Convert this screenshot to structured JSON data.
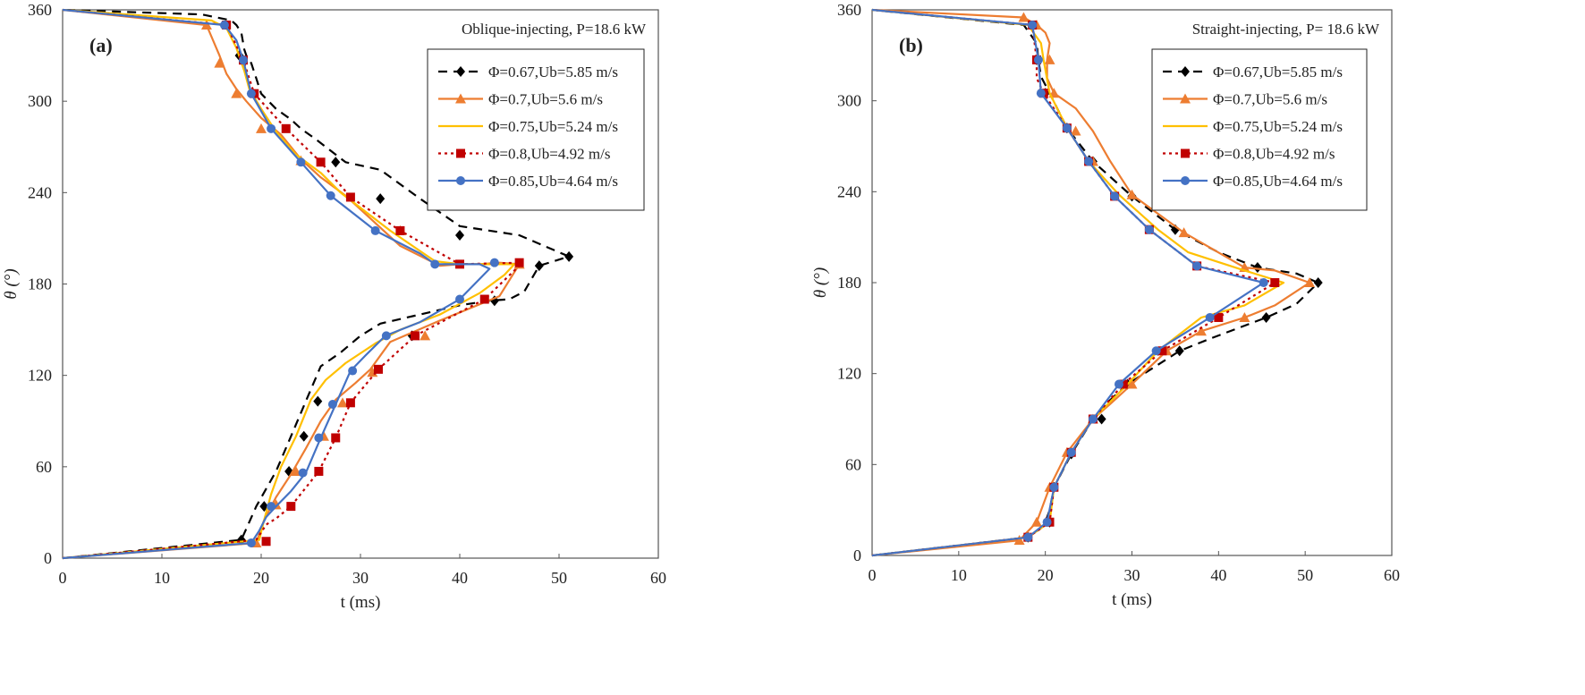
{
  "chart_data": [
    {
      "type": "line",
      "panel_label": "(a)",
      "title": "Oblique-injecting, P=18.6 kW",
      "xlabel": "t (ms)",
      "ylabel": "θ (°)",
      "xlim": [
        0,
        60
      ],
      "ylim": [
        0,
        360
      ],
      "xticks": [
        "0",
        "10",
        "20",
        "30",
        "40",
        "50",
        "60"
      ],
      "yticks": [
        "0",
        "60",
        "120",
        "180",
        "240",
        "300",
        "360"
      ],
      "grid": false,
      "legend_position": "top-right",
      "series": [
        {
          "name": "Φ=0.67,Ub=5.85 m/s",
          "color": "#000000",
          "dash": "10,7",
          "marker": "diamond",
          "x": [
            0,
            18,
            19.5,
            21.5,
            23,
            24.5,
            26,
            28,
            30,
            32,
            36,
            40,
            43,
            45,
            46.5,
            48,
            51,
            46,
            40,
            36,
            32,
            28.5,
            25.5,
            24,
            23,
            21.5,
            20,
            19.5,
            19,
            18.5,
            18.3,
            18,
            17.5,
            17,
            14,
            0
          ],
          "y": [
            0,
            12,
            34,
            57,
            80,
            103,
            126,
            135,
            146,
            154,
            160,
            166,
            169,
            170,
            175,
            192,
            198,
            212,
            218,
            236,
            255,
            260,
            275,
            282,
            288,
            295,
            305,
            315,
            325,
            330,
            334,
            345,
            350,
            353,
            357,
            360
          ],
          "marker_x": [
            18,
            20.3,
            22.8,
            24.3,
            25.7,
            35.2,
            43.5,
            48,
            51,
            40,
            32,
            27.5,
            17.8
          ],
          "marker_y": [
            12,
            34,
            57,
            80,
            103,
            146,
            169,
            192,
            198,
            212,
            236,
            260,
            330
          ]
        },
        {
          "name": "Φ=0.7,Ub=5.6 m/s",
          "color": "#ed7d31",
          "dash": "",
          "marker": "triangle",
          "x": [
            0,
            19.5,
            20.3,
            21.5,
            23,
            24.5,
            26,
            27.5,
            29.5,
            31,
            33,
            38,
            44,
            46,
            44,
            42,
            40,
            38,
            34,
            28.5,
            26,
            24,
            22,
            20,
            18.5,
            17.5,
            16.5,
            15.8,
            14.5,
            0
          ],
          "y": [
            0,
            10,
            25,
            40,
            55,
            72,
            90,
            104,
            115,
            124,
            142,
            156,
            172,
            193,
            194,
            193,
            193,
            192,
            205,
            238,
            250,
            262,
            278,
            289,
            300,
            308,
            318,
            330,
            350,
            360
          ],
          "marker_x": [
            19.5,
            21.5,
            23.5,
            26.3,
            28.2,
            31.2,
            36.5,
            46,
            34,
            24,
            20,
            17.5,
            15.8,
            14.5
          ],
          "marker_y": [
            10,
            35,
            57,
            80,
            102,
            122,
            146,
            193,
            215,
            261,
            282,
            305,
            325,
            350
          ]
        },
        {
          "name": "Φ=0.75,Ub=5.24 m/s",
          "color": "#ffc000",
          "dash": "",
          "marker": "",
          "x": [
            0,
            19.8,
            20.3,
            21,
            22,
            23.5,
            25,
            26.5,
            28.5,
            31.5,
            34,
            38,
            42,
            44.5,
            45.5,
            43,
            40,
            37.5,
            33,
            28,
            26,
            23.5,
            21.5,
            20,
            18.8,
            18.3,
            17.5,
            16.5,
            15,
            0
          ],
          "y": [
            0,
            12,
            25,
            42,
            60,
            80,
            104,
            117,
            128,
            141,
            150,
            160,
            174,
            186,
            193,
            193,
            193,
            195,
            215,
            240,
            253,
            265,
            280,
            295,
            308,
            320,
            335,
            348,
            353,
            360
          ],
          "marker_x": [],
          "marker_y": []
        },
        {
          "name": "Φ=0.8,Ub=4.92 m/s",
          "color": "#c00000",
          "dash": "3,4",
          "marker": "square",
          "x": [
            0,
            19.5,
            20.5,
            21.5,
            23,
            25.8,
            27.5,
            29,
            31.8,
            35.5,
            42.5,
            46,
            46,
            40,
            34,
            29,
            26,
            22.5,
            19.3,
            18.2,
            16.5,
            0
          ],
          "y": [
            0,
            12,
            22,
            26,
            34,
            57,
            79,
            102,
            124,
            146,
            170,
            192,
            194,
            193,
            215,
            237,
            260,
            282,
            305,
            327,
            350,
            360
          ],
          "marker_x": [
            20.5,
            23,
            25.8,
            27.5,
            29,
            31.8,
            35.5,
            42.5,
            46,
            40,
            34,
            29,
            26,
            22.5,
            19.3,
            18.2,
            16.5
          ],
          "marker_y": [
            11,
            34,
            57,
            79,
            102,
            124,
            146,
            170,
            194,
            193,
            215,
            237,
            260,
            282,
            305,
            327,
            350
          ]
        },
        {
          "name": "Φ=0.85,Ub=4.64 m/s",
          "color": "#4472c4",
          "dash": "",
          "marker": "circle",
          "x": [
            0,
            19,
            19.8,
            20.5,
            21.5,
            23,
            24.5,
            26,
            27.5,
            29,
            30.5,
            32.5,
            36,
            40,
            43,
            42,
            40,
            37.5,
            36,
            31.5,
            27,
            24,
            21,
            19,
            18.2,
            17.5,
            16.3,
            0
          ],
          "y": [
            0,
            10,
            18,
            27,
            34,
            44,
            56,
            79,
            101,
            123,
            133,
            146,
            155,
            170,
            190,
            193,
            193,
            193,
            200,
            215,
            238,
            260,
            282,
            305,
            327,
            340,
            350,
            360
          ],
          "marker_x": [
            19,
            21,
            24.2,
            25.8,
            27.2,
            29.2,
            32.6,
            40,
            43.5,
            37.5,
            31.5,
            27,
            24,
            21,
            19,
            18.2,
            16.3
          ],
          "marker_y": [
            10,
            34,
            56,
            79,
            101,
            123,
            146,
            170,
            194,
            193,
            215,
            238,
            260,
            282,
            305,
            327,
            350
          ]
        }
      ]
    },
    {
      "type": "line",
      "panel_label": "(b)",
      "title": "Straight-injecting, P= 18.6 kW",
      "xlabel": "t (ms)",
      "ylabel": "θ (°)",
      "xlim": [
        0,
        60
      ],
      "ylim": [
        0,
        360
      ],
      "xticks": [
        "0",
        "10",
        "20",
        "30",
        "40",
        "50",
        "60"
      ],
      "yticks": [
        "0",
        "60",
        "120",
        "180",
        "240",
        "300",
        "360"
      ],
      "grid": false,
      "legend_position": "top-right",
      "series": [
        {
          "name": "Φ=0.67,Ub=5.85 m/s",
          "color": "#000000",
          "dash": "10,7",
          "marker": "diamond",
          "x": [
            0,
            18,
            19.5,
            20,
            20.5,
            21,
            23,
            25.5,
            27,
            29.5,
            32.5,
            35.5,
            39,
            45.5,
            49,
            51.5,
            49,
            44.5,
            40,
            35,
            30,
            25.5,
            22.5,
            20.5,
            19.5,
            19.2,
            19,
            17.5,
            0
          ],
          "y": [
            0,
            12,
            18,
            22,
            30,
            45,
            67,
            90,
            100,
            113,
            124,
            135,
            143,
            157,
            166,
            180,
            186,
            190,
            200,
            215,
            237,
            260,
            282,
            305,
            316,
            327,
            338,
            350,
            360
          ],
          "marker_x": [
            18,
            20.5,
            21,
            23,
            26.5,
            29.5,
            35.5,
            45.5,
            51.5,
            44.5,
            35,
            30,
            25.5,
            22.5,
            20,
            19
          ],
          "marker_y": [
            12,
            22,
            45,
            67,
            90,
            113,
            135,
            157,
            180,
            190,
            215,
            237,
            260,
            282,
            305,
            327
          ]
        },
        {
          "name": "Φ=0.7,Ub=5.6 m/s",
          "color": "#ed7d31",
          "dash": "",
          "marker": "triangle",
          "x": [
            0,
            17,
            19,
            20.5,
            22.5,
            25.5,
            27.5,
            30,
            34,
            38,
            43,
            46.5,
            50.5,
            46.5,
            43,
            36,
            30,
            27.5,
            25.5,
            23.5,
            21,
            20.2,
            20.2,
            20.5,
            20,
            19,
            17.5,
            0
          ],
          "y": [
            0,
            10,
            22,
            45,
            68,
            90,
            100,
            113,
            135,
            148,
            157,
            165,
            180,
            188,
            190,
            213,
            238,
            260,
            280,
            295,
            305,
            315,
            327,
            338,
            345,
            350,
            355,
            360
          ],
          "marker_x": [
            17,
            19,
            20.5,
            22.5,
            25.5,
            30,
            34,
            38,
            43,
            50.5,
            43,
            36,
            30,
            25.5,
            23.5,
            21,
            20.5,
            19,
            17.5
          ],
          "marker_y": [
            10,
            22,
            45,
            68,
            90,
            113,
            135,
            148,
            157,
            180,
            190,
            213,
            238,
            260,
            280,
            305,
            327,
            350,
            355
          ]
        },
        {
          "name": "Φ=0.75,Ub=5.24 m/s",
          "color": "#ffc000",
          "dash": "",
          "marker": "",
          "x": [
            0,
            18,
            20.5,
            21,
            23,
            25.5,
            29.5,
            33,
            38,
            43,
            47.5,
            43,
            36.5,
            33,
            28.5,
            25,
            22.5,
            20.5,
            19.8,
            19.5,
            18,
            0
          ],
          "y": [
            0,
            12,
            22,
            45,
            68,
            90,
            113,
            135,
            157,
            165,
            180,
            188,
            200,
            215,
            238,
            260,
            282,
            305,
            327,
            338,
            350,
            360
          ],
          "marker_x": [],
          "marker_y": []
        },
        {
          "name": "Φ=0.8,Ub=4.92 m/s",
          "color": "#c00000",
          "dash": "3,4",
          "marker": "square",
          "x": [
            0,
            18,
            20.5,
            21,
            23,
            25.5,
            29,
            33.5,
            40,
            46.5,
            37.5,
            32,
            28,
            25,
            22.5,
            19.8,
            19,
            19,
            18.5,
            0
          ],
          "y": [
            0,
            12,
            22,
            45,
            68,
            90,
            113,
            135,
            157,
            180,
            191,
            215,
            237,
            260,
            282,
            305,
            315,
            327,
            350,
            360
          ],
          "marker_x": [
            18,
            20.5,
            21,
            23,
            25.5,
            29,
            33.5,
            40,
            46.5,
            37.5,
            32,
            28,
            25,
            22.5,
            19.8,
            19,
            18.5
          ],
          "marker_y": [
            12,
            22,
            45,
            68,
            90,
            113,
            135,
            157,
            180,
            191,
            215,
            237,
            260,
            282,
            305,
            327,
            350
          ]
        },
        {
          "name": "Φ=0.85,Ub=4.64 m/s",
          "color": "#4472c4",
          "dash": "",
          "marker": "circle",
          "x": [
            0,
            18,
            20.2,
            21,
            23,
            25.5,
            28.5,
            32.8,
            39,
            45.2,
            37.5,
            32,
            28,
            25,
            22.5,
            19.5,
            19.2,
            18.5,
            0
          ],
          "y": [
            0,
            12,
            22,
            45,
            68,
            90,
            113,
            135,
            157,
            180,
            191,
            215,
            237,
            260,
            282,
            305,
            327,
            350,
            360
          ],
          "marker_x": [
            18,
            20.2,
            21,
            23,
            25.5,
            28.5,
            32.8,
            39,
            45.2,
            37.5,
            32,
            28,
            25,
            22.5,
            19.5,
            19.2,
            18.5
          ],
          "marker_y": [
            12,
            22,
            45,
            68,
            90,
            113,
            135,
            157,
            180,
            191,
            215,
            237,
            260,
            282,
            305,
            327,
            350
          ]
        }
      ]
    }
  ]
}
